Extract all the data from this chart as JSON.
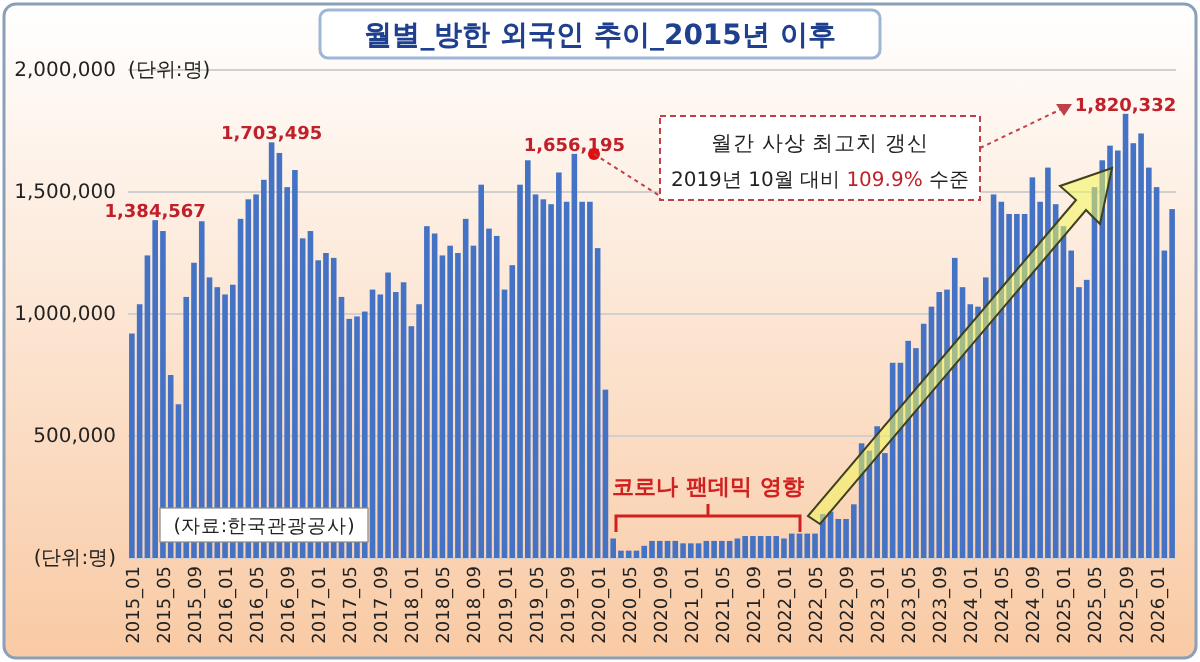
{
  "chart_data": {
    "type": "bar",
    "title": "월별_방한 외국인 추이_2015년 이후",
    "annotations": [
      "(단위:명)",
      "(자료:한국관광공사)",
      "코로나 팬데믹 영향",
      "월간 사상 최고치 갱신",
      "2019년 10월 대비 109.9% 수준"
    ],
    "categories": [
      "2015_01",
      null,
      null,
      null,
      "2015_05",
      null,
      null,
      null,
      "2015_09",
      null,
      null,
      null,
      "2016_01",
      null,
      null,
      null,
      "2016_05",
      null,
      null,
      null,
      "2016_09",
      null,
      null,
      null,
      "2017_01",
      null,
      null,
      null,
      "2017_05",
      null,
      null,
      null,
      "2017_09",
      null,
      null,
      null,
      "2018_01",
      null,
      null,
      null,
      "2018_05",
      null,
      null,
      null,
      "2018_09",
      null,
      null,
      null,
      "2019_01",
      null,
      null,
      null,
      "2019_05",
      null,
      null,
      null,
      "2019_09",
      null,
      null,
      null,
      "2020_01",
      null,
      null,
      null,
      "2020_05",
      null,
      null,
      null,
      "2020_09",
      null,
      null,
      null,
      "2021_01",
      null,
      null,
      null,
      "2021_05",
      null,
      null,
      null,
      "2021_09",
      null,
      null,
      null,
      "2022_01",
      null,
      null,
      null,
      "2022_05",
      null,
      null,
      null,
      "2022_09",
      null,
      null,
      null,
      "2023_01",
      null,
      null,
      null,
      "2023_05",
      null,
      null,
      null,
      "2023_09",
      null,
      null,
      null,
      "2024_01",
      null,
      null,
      null,
      "2024_05",
      null,
      null,
      null,
      "2024_09",
      null,
      null,
      null,
      "2025_01",
      null,
      null,
      null,
      "2025_05",
      null,
      null,
      null,
      "2025_09",
      null,
      null,
      null,
      "2026_01",
      null,
      null
    ],
    "values": [
      920000,
      1040000,
      1240000,
      1384567,
      1340000,
      750000,
      630000,
      1070000,
      1210000,
      1380000,
      1150000,
      1110000,
      1080000,
      1120000,
      1390000,
      1470000,
      1490000,
      1550000,
      1703495,
      1660000,
      1520000,
      1590000,
      1310000,
      1340000,
      1220000,
      1250000,
      1230000,
      1070000,
      980000,
      990000,
      1010000,
      1100000,
      1080000,
      1170000,
      1090000,
      1130000,
      950000,
      1040000,
      1360000,
      1330000,
      1240000,
      1280000,
      1250000,
      1390000,
      1280000,
      1530000,
      1350000,
      1320000,
      1100000,
      1200000,
      1530000,
      1630000,
      1490000,
      1470000,
      1450000,
      1580000,
      1460000,
      1656195,
      1460000,
      1460000,
      1270000,
      690000,
      80000,
      30000,
      30000,
      30000,
      50000,
      70000,
      70000,
      70000,
      70000,
      60000,
      60000,
      60000,
      70000,
      70000,
      70000,
      70000,
      80000,
      90000,
      90000,
      90000,
      90000,
      90000,
      80000,
      100000,
      100000,
      100000,
      100000,
      180000,
      190000,
      160000,
      160000,
      220000,
      470000,
      440000,
      540000,
      430000,
      800000,
      800000,
      890000,
      860000,
      960000,
      1030000,
      1090000,
      1100000,
      1230000,
      1110000,
      1040000,
      1030000,
      1150000,
      1490000,
      1460000,
      1410000,
      1410000,
      1410000,
      1560000,
      1460000,
      1600000,
      1450000,
      1360000,
      1260000,
      1110000,
      1140000,
      1520000,
      1630000,
      1690000,
      1670000,
      1820332,
      1700000,
      1740000,
      1600000,
      1520000,
      1260000,
      1430000
    ],
    "value_labels": [
      null,
      null,
      null,
      "1,384,567",
      null,
      null,
      null,
      null,
      null,
      null,
      null,
      null,
      null,
      null,
      null,
      null,
      null,
      null,
      "1,703,495",
      null,
      null,
      null,
      null,
      null,
      null,
      null,
      null,
      null,
      null,
      null,
      null,
      null,
      null,
      null,
      null,
      null,
      null,
      null,
      null,
      null,
      null,
      null,
      null,
      null,
      null,
      null,
      null,
      null,
      null,
      null,
      null,
      null,
      null,
      null,
      null,
      null,
      null,
      "1,656,195",
      null,
      null,
      null,
      null,
      null,
      null,
      null,
      null,
      null,
      null,
      null,
      null,
      null,
      null,
      null,
      null,
      null,
      null,
      null,
      null,
      null,
      null,
      null,
      null,
      null,
      null,
      null,
      null,
      null,
      null,
      null,
      null,
      null,
      null,
      null,
      null,
      null,
      null,
      null,
      null,
      null,
      null,
      null,
      null,
      null,
      null,
      null,
      null,
      null,
      null,
      null,
      null,
      null,
      null,
      null,
      null,
      null,
      null,
      null,
      null,
      null,
      null,
      null,
      null,
      null,
      null,
      null,
      null,
      null,
      null,
      "1,820,332",
      null,
      null,
      null,
      null,
      null,
      null
    ],
    "color": "#4472c4",
    "ylim": [
      0,
      2000000
    ],
    "yticks": [
      {
        "value": 0,
        "label": "(단위:명)"
      },
      {
        "value": 500000,
        "label": "500,000"
      },
      {
        "value": 1000000,
        "label": "1,000,000"
      },
      {
        "value": 1500000,
        "label": "1,500,000"
      },
      {
        "value": 2000000,
        "label": "2,000,000"
      }
    ],
    "grid": "y"
  }
}
